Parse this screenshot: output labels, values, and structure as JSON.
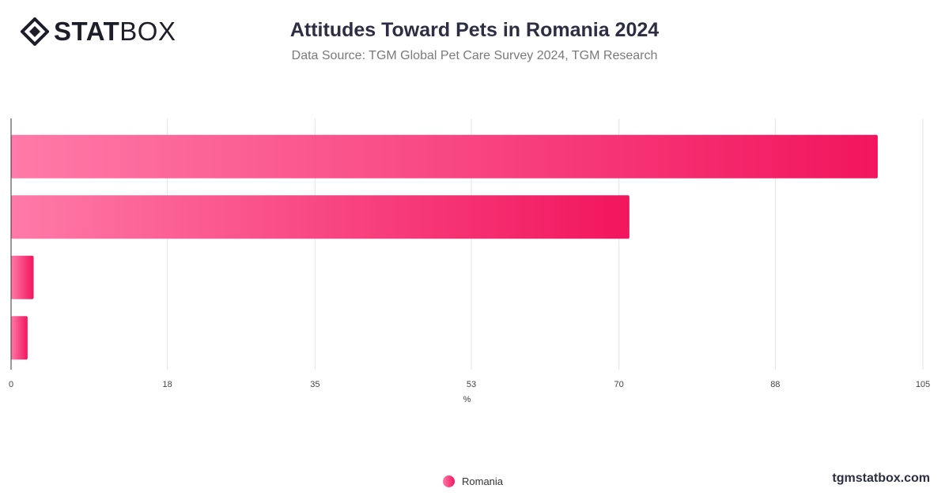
{
  "header": {
    "logo_bold": "STAT",
    "logo_light": "BOX",
    "title": "Attitudes Toward Pets in Romania 2024",
    "subtitle": "Data Source: TGM Global Pet Care Survey 2024, TGM Research"
  },
  "footer": {
    "site": "tgmstatbox.com"
  },
  "chart_data": {
    "type": "bar",
    "orientation": "horizontal",
    "categories": [
      "",
      "",
      "",
      ""
    ],
    "series": [
      {
        "name": "Romania",
        "values": [
          99.8,
          71.2,
          2.6,
          1.9
        ]
      }
    ],
    "xlabel": "%",
    "xlim": [
      0,
      105
    ],
    "xticks": [
      0,
      18,
      35,
      53,
      70,
      88,
      105
    ],
    "grid": true,
    "legend": "bottom-center",
    "colors": {
      "bar_start": "#ff7aa8",
      "bar_end": "#f2155e"
    }
  }
}
